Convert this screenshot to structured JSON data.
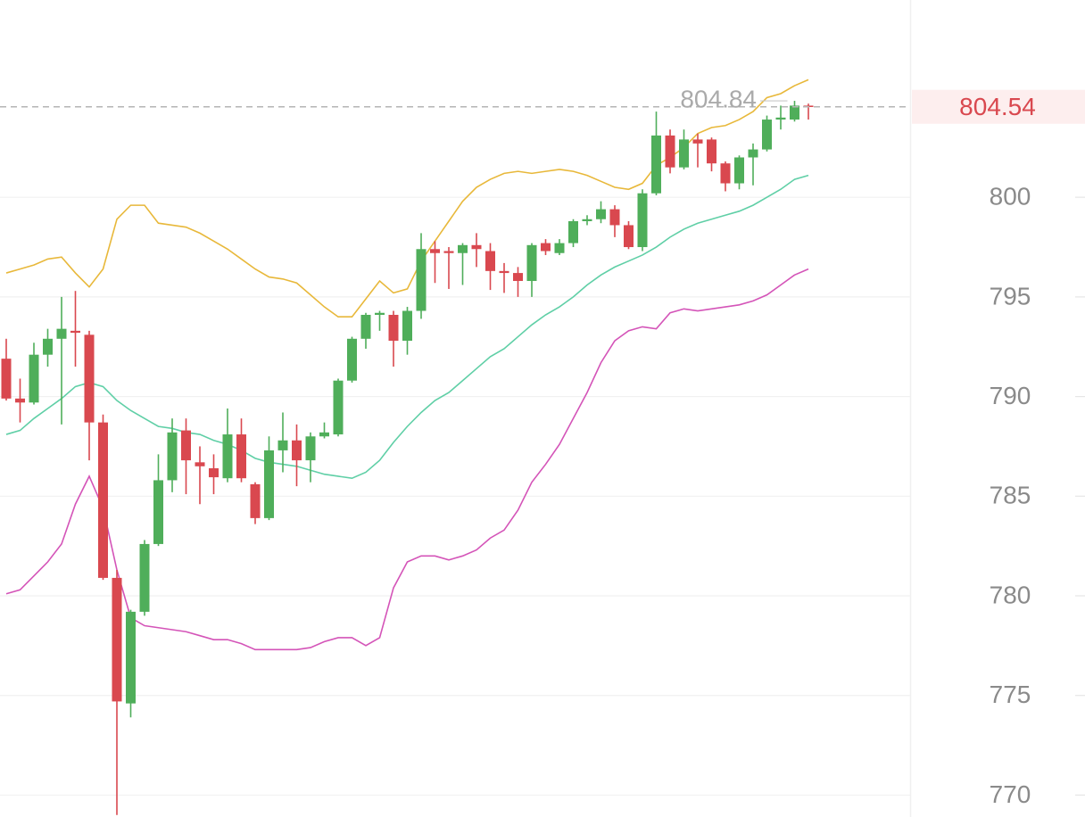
{
  "chart_data": {
    "type": "candlestick",
    "open": [
      791.9,
      789.9,
      789.7,
      792.1,
      792.9,
      793.3,
      793.1,
      788.7,
      780.9,
      774.6,
      779.2,
      782.6,
      785.8,
      788.3,
      786.7,
      786.4,
      785.9,
      788.1,
      785.6,
      783.9,
      787.3,
      787.8,
      786.8,
      788.0,
      788.1,
      790.8,
      792.9,
      794.1,
      794.1,
      792.8,
      794.3,
      797.4,
      797.3,
      797.2,
      797.6,
      797.3,
      796.3,
      796.2,
      795.8,
      797.7,
      797.2,
      797.7,
      798.8,
      798.9,
      799.4,
      798.6,
      797.5,
      800.2,
      803.1,
      801.5,
      802.9,
      802.9,
      801.7,
      800.7,
      802.0,
      802.4,
      803.9,
      803.9,
      804.6
    ],
    "high": [
      792.9,
      790.9,
      792.7,
      793.4,
      795.0,
      795.3,
      793.3,
      789.1,
      781.3,
      779.3,
      782.8,
      787.1,
      788.9,
      788.9,
      787.5,
      787.1,
      789.4,
      788.9,
      785.7,
      788.0,
      789.2,
      788.6,
      788.2,
      788.7,
      790.9,
      793.0,
      794.2,
      794.3,
      794.3,
      794.5,
      798.2,
      797.8,
      797.5,
      797.7,
      798.2,
      797.7,
      796.7,
      796.5,
      797.7,
      797.9,
      797.9,
      798.9,
      799.1,
      799.8,
      799.6,
      798.8,
      800.4,
      804.3,
      803.4,
      803.4,
      803.2,
      803.0,
      801.8,
      802.1,
      802.7,
      804.1,
      804.6,
      804.84,
      804.7
    ],
    "low": [
      789.8,
      788.7,
      789.6,
      791.5,
      788.6,
      791.5,
      786.8,
      780.8,
      769.0,
      773.9,
      779.0,
      782.5,
      785.2,
      785.1,
      784.6,
      785.1,
      785.7,
      785.7,
      783.6,
      783.8,
      786.2,
      785.5,
      785.7,
      787.9,
      788.0,
      790.7,
      792.4,
      793.3,
      791.5,
      792.1,
      793.9,
      795.7,
      795.4,
      795.6,
      796.5,
      795.35,
      795.2,
      795.0,
      795.0,
      797.1,
      797.1,
      797.5,
      798.6,
      798.7,
      798.0,
      797.4,
      797.3,
      800.1,
      801.2,
      801.4,
      801.5,
      801.3,
      800.3,
      800.4,
      800.6,
      802.3,
      803.4,
      803.8,
      803.9
    ],
    "close": [
      789.9,
      789.7,
      792.1,
      792.9,
      793.4,
      793.2,
      788.7,
      780.9,
      774.7,
      779.2,
      782.6,
      785.8,
      788.2,
      786.8,
      786.5,
      785.95,
      788.1,
      785.9,
      783.9,
      787.3,
      787.8,
      786.8,
      788.0,
      788.2,
      790.8,
      792.9,
      794.1,
      794.2,
      792.8,
      794.3,
      797.4,
      797.2,
      797.2,
      797.6,
      797.4,
      796.3,
      796.2,
      795.8,
      797.6,
      797.3,
      797.7,
      798.8,
      798.9,
      799.4,
      798.6,
      797.5,
      800.2,
      803.1,
      801.5,
      802.9,
      802.7,
      801.7,
      800.7,
      802.0,
      802.4,
      803.9,
      804.0,
      804.6,
      804.54
    ],
    "up_color": "#4fae5a",
    "down_color": "#d9484f",
    "overlays": [
      {
        "color": "#e8b83a",
        "values": [
          796.2,
          796.4,
          796.6,
          796.9,
          797.0,
          796.2,
          795.5,
          796.4,
          798.9,
          799.6,
          799.6,
          798.7,
          798.6,
          798.5,
          798.2,
          797.8,
          797.4,
          796.9,
          796.4,
          796.0,
          795.9,
          795.7,
          795.1,
          794.5,
          794.0,
          794.0,
          794.9,
          795.8,
          795.2,
          795.4,
          796.8,
          797.8,
          798.8,
          799.8,
          800.5,
          800.9,
          801.2,
          801.3,
          801.2,
          801.3,
          801.4,
          801.3,
          801.1,
          800.8,
          800.5,
          800.4,
          800.7,
          801.6,
          802.0,
          802.5,
          803.2,
          803.5,
          803.6,
          803.9,
          804.3,
          805.0,
          805.2,
          805.6,
          805.9
        ]
      },
      {
        "color": "#5fcfa6",
        "values": [
          788.1,
          788.3,
          788.9,
          789.4,
          789.9,
          790.5,
          790.7,
          790.5,
          789.8,
          789.3,
          788.9,
          788.5,
          788.4,
          788.2,
          788.1,
          787.8,
          787.6,
          787.3,
          786.9,
          786.7,
          786.6,
          786.5,
          786.3,
          786.1,
          786.0,
          785.9,
          786.2,
          786.8,
          787.7,
          788.5,
          789.2,
          789.8,
          790.2,
          790.8,
          791.4,
          792.0,
          792.4,
          793.0,
          793.6,
          794.1,
          794.5,
          795.0,
          795.6,
          796.1,
          796.5,
          796.8,
          797.1,
          797.5,
          798.0,
          798.4,
          798.7,
          798.9,
          799.1,
          799.3,
          799.6,
          800.0,
          800.4,
          800.9,
          801.1
        ]
      },
      {
        "color": "#d454b8",
        "values": [
          780.1,
          780.3,
          781.0,
          781.7,
          782.6,
          784.6,
          786.0,
          784.4,
          781.3,
          778.9,
          778.5,
          778.4,
          778.3,
          778.2,
          778.0,
          777.8,
          777.8,
          777.6,
          777.3,
          777.3,
          777.3,
          777.3,
          777.4,
          777.7,
          777.9,
          777.9,
          777.5,
          777.9,
          780.4,
          781.7,
          782.0,
          782.0,
          781.8,
          782.0,
          782.3,
          782.9,
          783.3,
          784.3,
          785.7,
          786.6,
          787.6,
          788.9,
          790.2,
          791.7,
          792.8,
          793.3,
          793.5,
          793.4,
          794.2,
          794.4,
          794.3,
          794.4,
          794.5,
          794.6,
          794.8,
          795.1,
          795.6,
          796.1,
          796.4
        ]
      }
    ],
    "ylim": [
      768.9,
      809.9
    ],
    "yticks": [
      770,
      775,
      780,
      785,
      790,
      795,
      800
    ],
    "grid": true
  }
}
